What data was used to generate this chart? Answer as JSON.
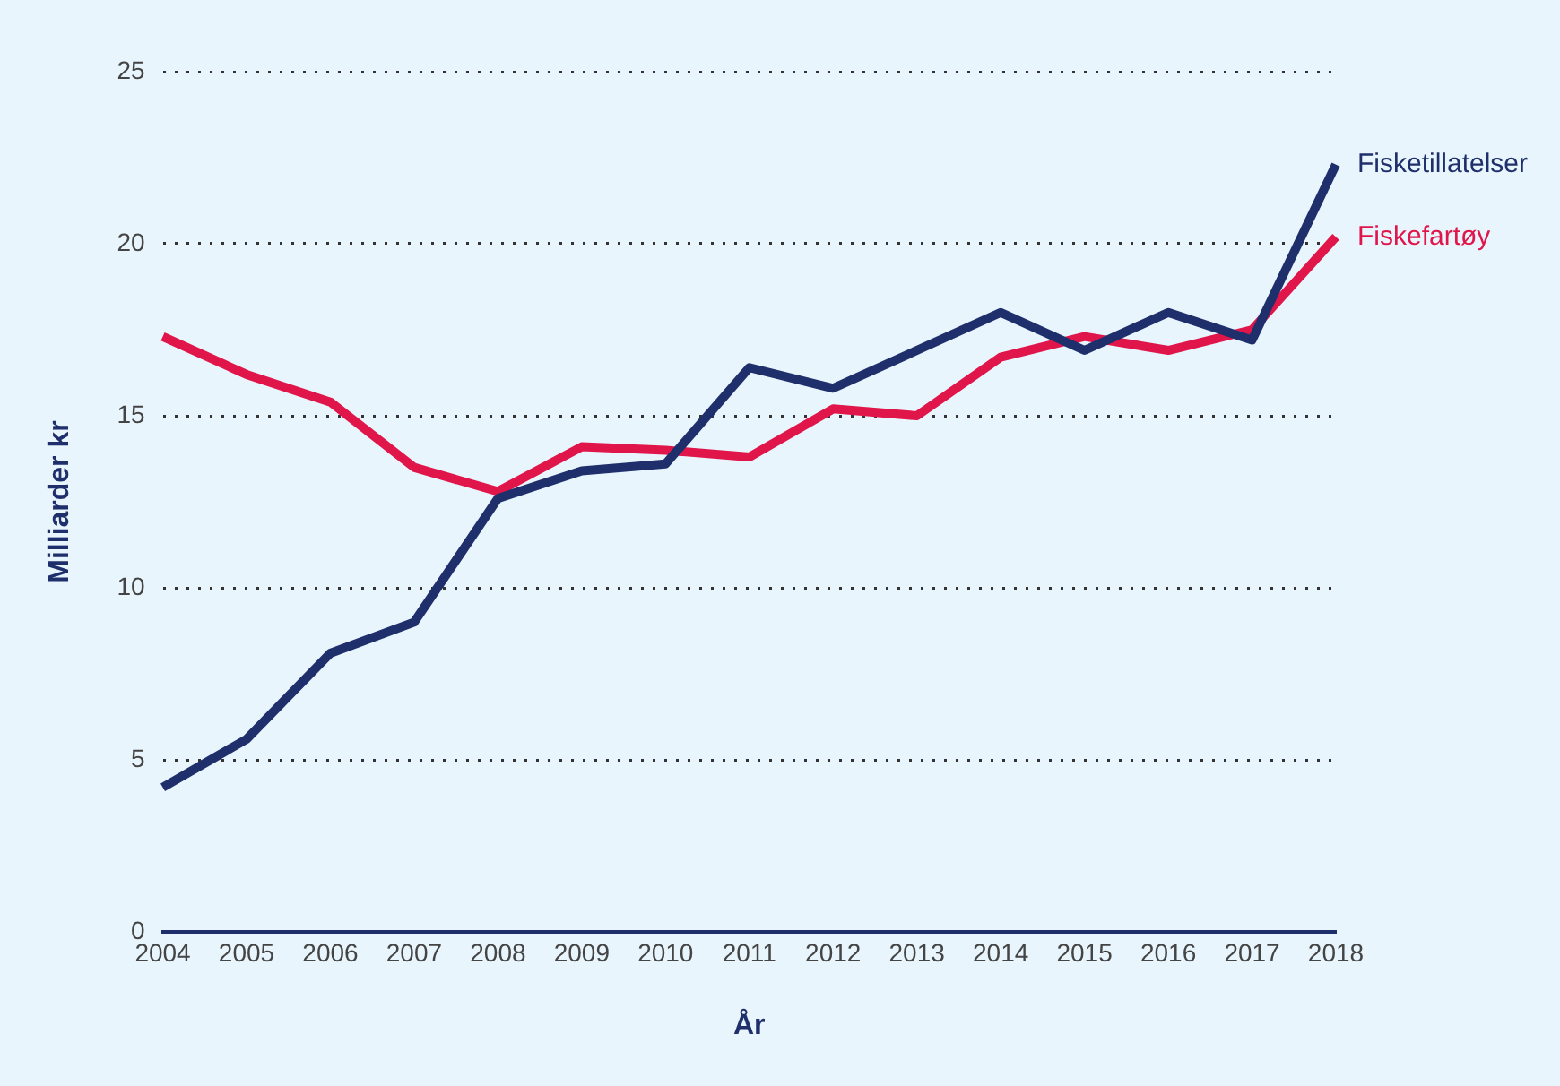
{
  "chart_data": {
    "type": "line",
    "xlabel": "År",
    "ylabel": "Milliarder kr",
    "categories": [
      "2004",
      "2005",
      "2006",
      "2007",
      "2008",
      "2009",
      "2010",
      "2011",
      "2012",
      "2013",
      "2014",
      "2015",
      "2016",
      "2017",
      "2018"
    ],
    "series": [
      {
        "name": "Fisketillatelser",
        "color": "#1f2f6b",
        "values": [
          4.2,
          5.6,
          8.1,
          9.0,
          12.6,
          13.4,
          13.6,
          16.4,
          15.8,
          16.9,
          18.0,
          16.9,
          18.0,
          17.2,
          22.3
        ]
      },
      {
        "name": "Fiskefartøy",
        "color": "#e0164a",
        "values": [
          17.3,
          16.2,
          15.4,
          13.5,
          12.8,
          14.1,
          14.0,
          13.8,
          15.2,
          15.0,
          16.7,
          17.3,
          16.9,
          17.5,
          20.2
        ]
      }
    ],
    "ylim": [
      0,
      25
    ],
    "yticks": [
      0,
      5,
      10,
      15,
      20,
      25
    ],
    "grid": "y",
    "legend": false,
    "marker": "none",
    "line_style": "solid"
  }
}
